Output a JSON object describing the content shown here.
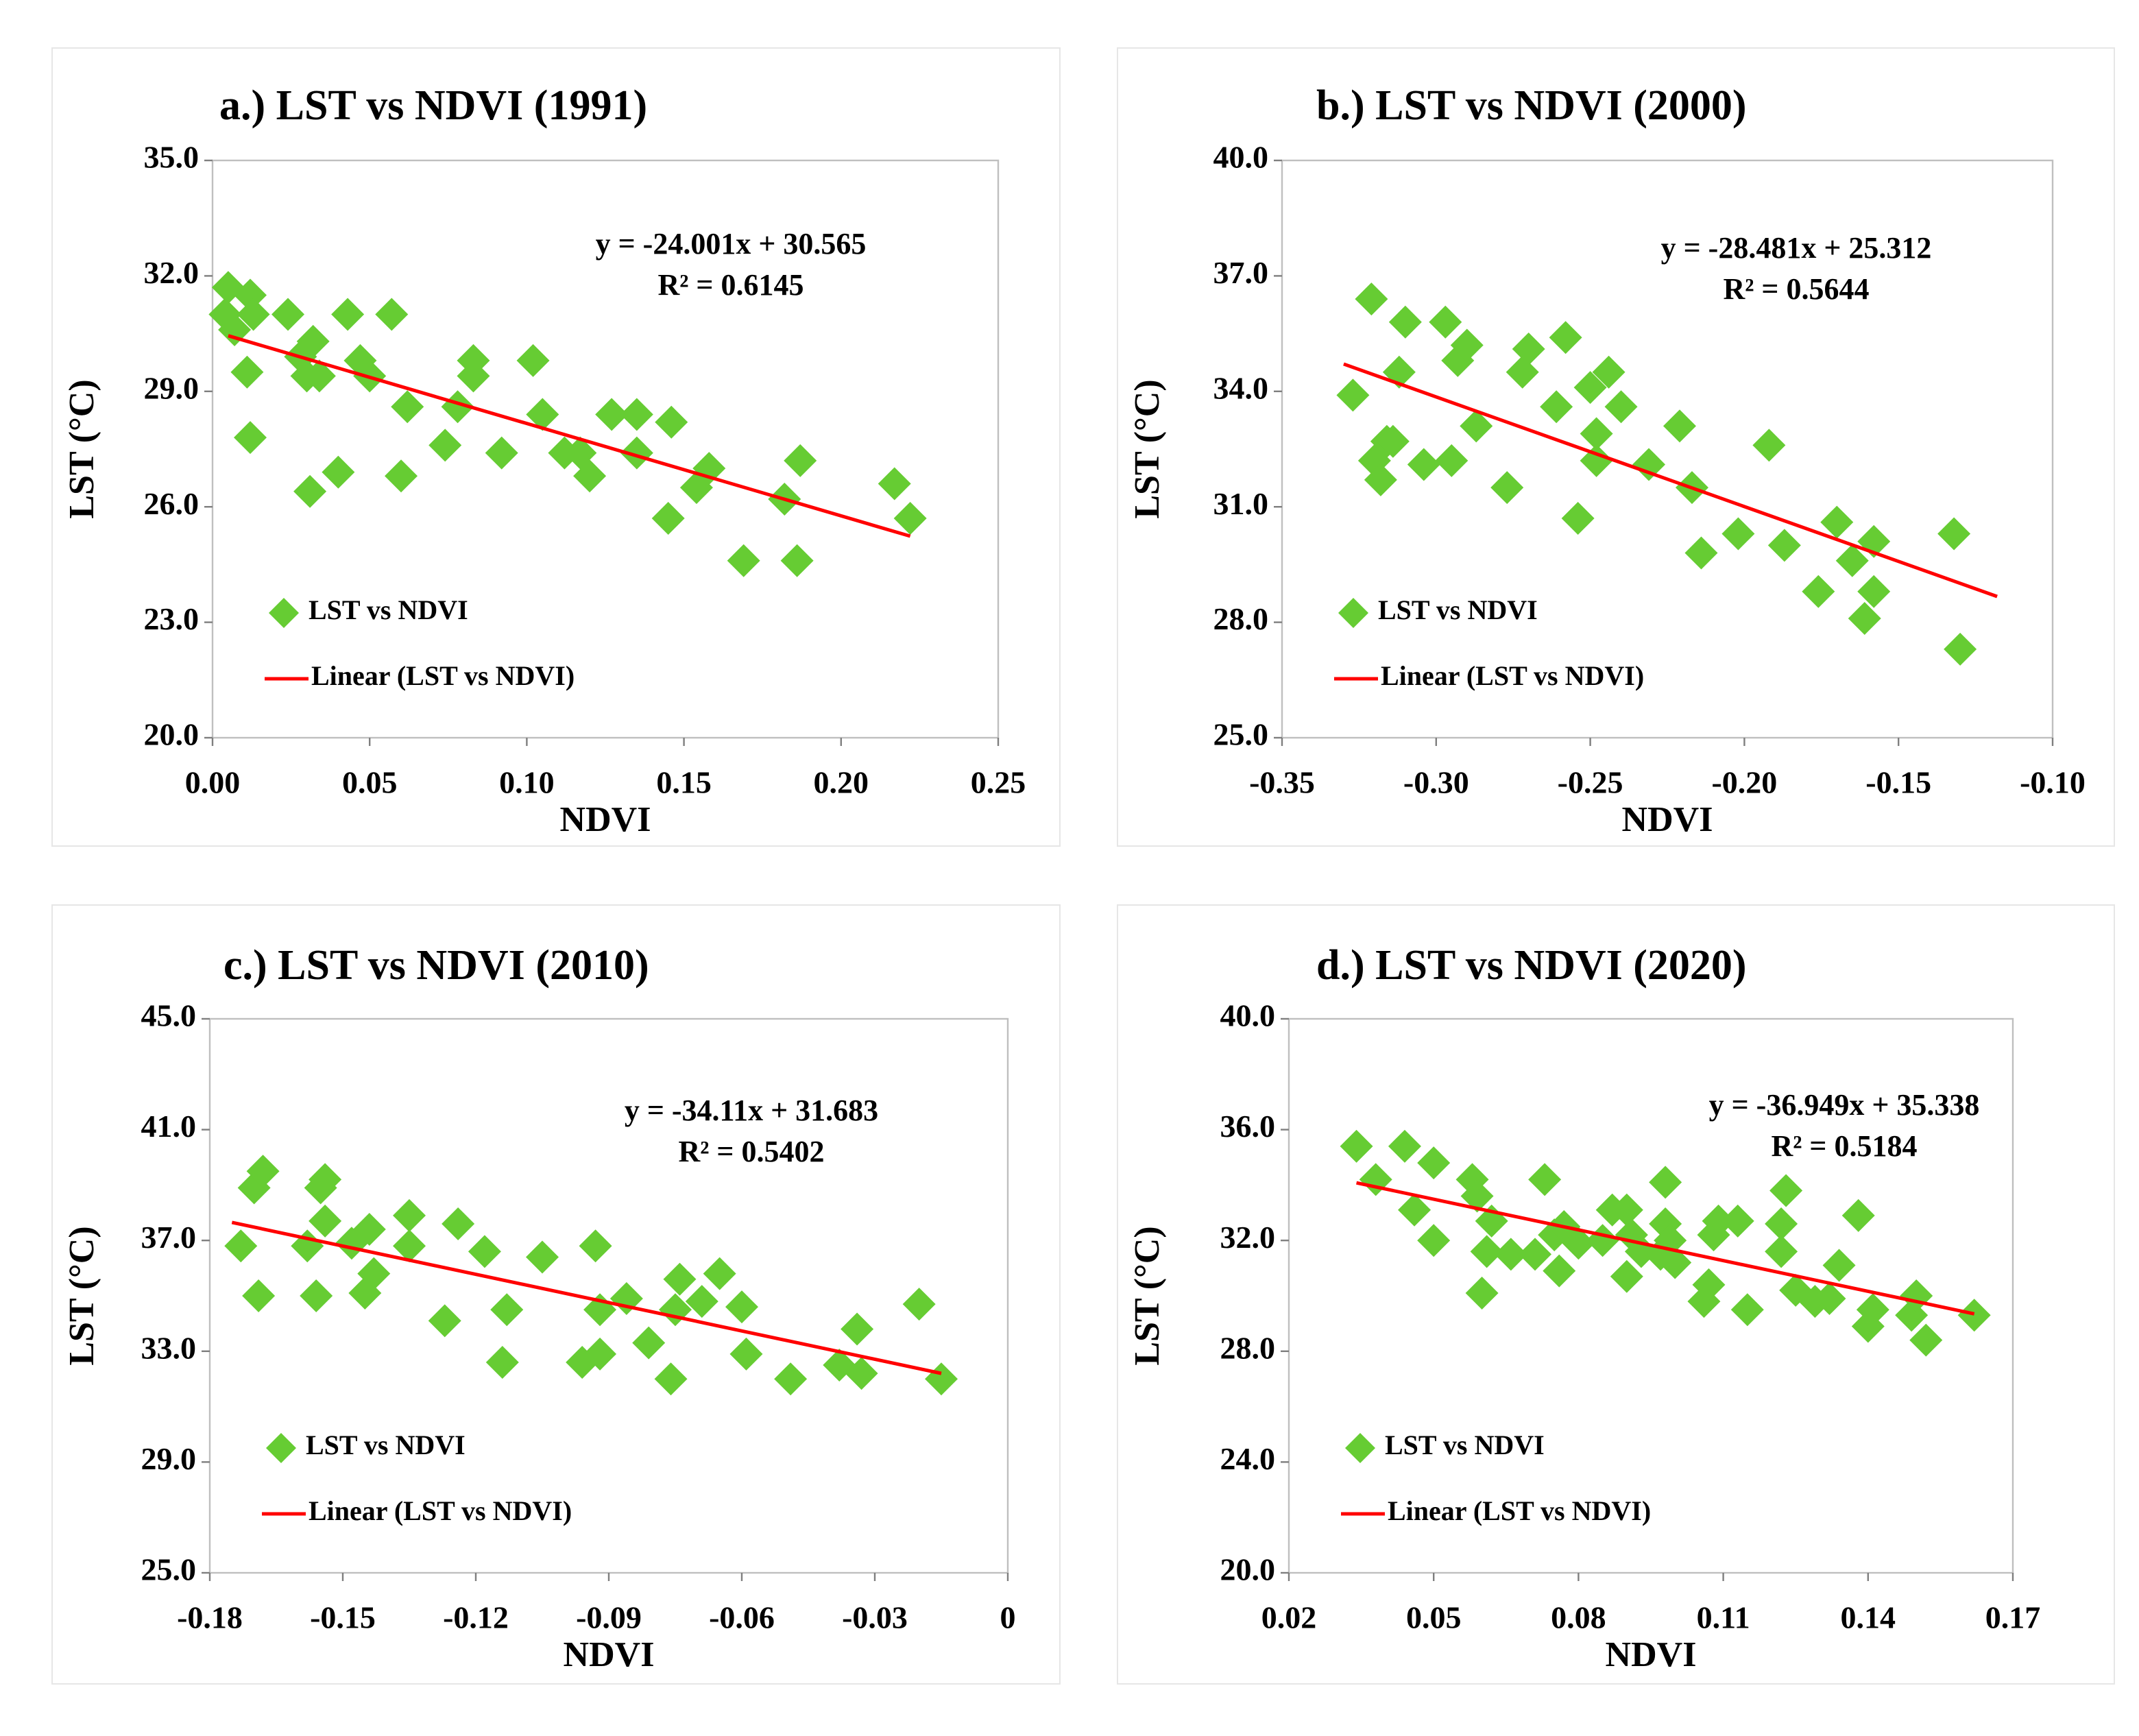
{
  "chart_data": [
    {
      "type": "scatter",
      "title": "a.) LST vs NDVI (1991)",
      "x_label": "NDVI",
      "y_label": "LST (°C)",
      "xlim": [
        0,
        0.25
      ],
      "ylim": [
        20,
        35
      ],
      "xticks": [
        {
          "value": 0,
          "label": "0.00"
        },
        0.05,
        {
          "value": 0.1,
          "label": "0.10"
        },
        0.15,
        {
          "value": 0.2,
          "label": "0.20"
        },
        0.25
      ],
      "yticks": [
        {
          "value": 20,
          "label": "20.0"
        },
        {
          "value": 23,
          "label": "23.0"
        },
        {
          "value": 26,
          "label": "26.0"
        },
        {
          "value": 29,
          "label": "29.0"
        },
        {
          "value": 32,
          "label": "32.0"
        },
        {
          "value": 35,
          "label": "35.0"
        }
      ],
      "series": [
        {
          "name": "LST vs NDVI",
          "color": "#66cc33",
          "x": [
            0.005,
            0.004,
            0.007,
            0.012,
            0.013,
            0.011,
            0.012,
            0.024,
            0.028,
            0.032,
            0.03,
            0.034,
            0.031,
            0.04,
            0.043,
            0.047,
            0.05,
            0.057,
            0.06,
            0.062,
            0.074,
            0.078,
            0.083,
            0.083,
            0.092,
            0.102,
            0.105,
            0.112,
            0.117,
            0.12,
            0.127,
            0.135,
            0.135,
            0.146,
            0.145,
            0.154,
            0.158,
            0.169,
            0.182,
            0.187,
            0.186,
            0.217,
            0.222
          ],
          "values": [
            31.7,
            31.0,
            30.6,
            31.5,
            31.0,
            29.5,
            27.8,
            31.0,
            29.9,
            30.3,
            29.4,
            29.4,
            26.4,
            26.9,
            31.0,
            29.8,
            29.4,
            31.0,
            26.8,
            28.6,
            27.6,
            28.6,
            29.8,
            29.4,
            27.4,
            29.8,
            28.4,
            27.4,
            27.4,
            26.8,
            28.4,
            28.4,
            27.4,
            28.2,
            25.7,
            26.5,
            27.0,
            24.6,
            26.2,
            27.2,
            24.6,
            26.6,
            25.7
          ]
        },
        {
          "name": "Linear (LST vs NDVI)",
          "color": "#ff0000",
          "type": "line",
          "x": [
            0.005,
            0.222
          ],
          "values": [
            30.445,
            25.237
          ]
        }
      ],
      "annotations": [
        "y = -24.001x + 30.565",
        "R² = 0.6145"
      ]
    },
    {
      "type": "scatter",
      "title": "b.) LST vs NDVI (2000)",
      "x_label": "NDVI",
      "y_label": "LST (°C)",
      "xlim": [
        -0.35,
        -0.1
      ],
      "ylim": [
        25,
        40
      ],
      "xticks": [
        -0.35,
        {
          "value": -0.3,
          "label": "-0.30"
        },
        -0.25,
        {
          "value": -0.2,
          "label": "-0.20"
        },
        -0.15,
        {
          "value": -0.1,
          "label": "-0.10"
        }
      ],
      "yticks": [
        {
          "value": 25,
          "label": "25.0"
        },
        {
          "value": 28,
          "label": "28.0"
        },
        {
          "value": 31,
          "label": "31.0"
        },
        {
          "value": 34,
          "label": "34.0"
        },
        {
          "value": 37,
          "label": "37.0"
        },
        {
          "value": 40,
          "label": "40.0"
        }
      ],
      "series": [
        {
          "name": "LST vs NDVI",
          "color": "#66cc33",
          "x": [
            -0.327,
            -0.321,
            -0.32,
            -0.318,
            -0.316,
            -0.314,
            -0.312,
            -0.31,
            -0.304,
            -0.297,
            -0.295,
            -0.293,
            -0.29,
            -0.287,
            -0.277,
            -0.272,
            -0.27,
            -0.261,
            -0.258,
            -0.254,
            -0.25,
            -0.248,
            -0.248,
            -0.244,
            -0.24,
            -0.231,
            -0.221,
            -0.217,
            -0.214,
            -0.202,
            -0.192,
            -0.187,
            -0.176,
            -0.17,
            -0.165,
            -0.161,
            -0.158,
            -0.158,
            -0.132,
            -0.13
          ],
          "values": [
            33.9,
            36.4,
            32.2,
            31.7,
            32.7,
            32.7,
            34.5,
            35.8,
            32.1,
            35.8,
            32.2,
            34.8,
            35.2,
            33.1,
            31.5,
            34.5,
            35.1,
            33.6,
            35.4,
            30.7,
            34.1,
            32.9,
            32.2,
            34.5,
            33.6,
            32.1,
            33.1,
            31.5,
            29.8,
            30.3,
            32.6,
            30.0,
            28.8,
            30.6,
            29.6,
            28.1,
            30.1,
            28.8,
            30.3,
            27.3
          ]
        },
        {
          "name": "Linear (LST vs NDVI)",
          "color": "#ff0000",
          "type": "line",
          "x": [
            -0.33,
            -0.118
          ],
          "values": [
            34.71,
            28.67
          ]
        }
      ],
      "annotations": [
        "y = -28.481x + 25.312",
        "R² = 0.5644"
      ]
    },
    {
      "type": "scatter",
      "title": "c.) LST vs NDVI (2010)",
      "x_label": "NDVI",
      "y_label": "LST (°C)",
      "xlim": [
        -0.18,
        0
      ],
      "ylim": [
        25,
        45
      ],
      "xticks": [
        -0.18,
        -0.15,
        -0.12,
        -0.09,
        -0.06,
        -0.03,
        0
      ],
      "yticks": [
        {
          "value": 25,
          "label": "25.0"
        },
        {
          "value": 29,
          "label": "29.0"
        },
        {
          "value": 33,
          "label": "33.0"
        },
        {
          "value": 37,
          "label": "37.0"
        },
        {
          "value": 41,
          "label": "41.0"
        },
        {
          "value": 45,
          "label": "45.0"
        }
      ],
      "series": [
        {
          "name": "LST vs NDVI",
          "color": "#66cc33",
          "x": [
            -0.173,
            -0.17,
            -0.168,
            -0.169,
            -0.158,
            -0.156,
            -0.155,
            -0.154,
            -0.154,
            -0.148,
            -0.144,
            -0.143,
            -0.145,
            -0.135,
            -0.135,
            -0.127,
            -0.124,
            -0.118,
            -0.113,
            -0.114,
            -0.105,
            -0.096,
            -0.093,
            -0.092,
            -0.092,
            -0.086,
            -0.081,
            -0.076,
            -0.074,
            -0.075,
            -0.069,
            -0.065,
            -0.06,
            -0.059,
            -0.049,
            -0.038,
            -0.034,
            -0.033,
            -0.02,
            -0.015
          ],
          "values": [
            36.8,
            38.9,
            39.5,
            35.0,
            36.8,
            35.0,
            38.9,
            39.2,
            37.7,
            36.9,
            37.4,
            35.8,
            35.1,
            37.9,
            36.8,
            34.1,
            37.6,
            36.6,
            34.5,
            32.6,
            36.4,
            32.6,
            36.8,
            34.5,
            32.9,
            34.9,
            33.3,
            32.0,
            35.6,
            34.5,
            34.8,
            35.8,
            34.6,
            32.9,
            32.0,
            32.5,
            33.8,
            32.2,
            34.7,
            32.0
          ]
        },
        {
          "name": "Linear (LST vs NDVI)",
          "color": "#ff0000",
          "type": "line",
          "x": [
            -0.175,
            -0.015
          ],
          "values": [
            37.65,
            32.2
          ]
        }
      ],
      "annotations": [
        "y = -34.11x + 31.683",
        "R² = 0.5402"
      ]
    },
    {
      "type": "scatter",
      "title": "d.) LST vs NDVI (2020)",
      "x_label": "NDVI",
      "y_label": "LST (°C)",
      "xlim": [
        0.02,
        0.17
      ],
      "ylim": [
        20,
        40
      ],
      "xticks": [
        0.02,
        0.05,
        0.08,
        0.11,
        0.14,
        0.17
      ],
      "yticks": [
        {
          "value": 20,
          "label": "20.0"
        },
        {
          "value": 24,
          "label": "24.0"
        },
        {
          "value": 28,
          "label": "28.0"
        },
        {
          "value": 32,
          "label": "32.0"
        },
        {
          "value": 36,
          "label": "36.0"
        },
        {
          "value": 40,
          "label": "40.0"
        }
      ],
      "series": [
        {
          "name": "LST vs NDVI",
          "color": "#66cc33",
          "x": [
            0.034,
            0.038,
            0.044,
            0.046,
            0.05,
            0.05,
            0.058,
            0.059,
            0.062,
            0.061,
            0.06,
            0.066,
            0.071,
            0.073,
            0.075,
            0.076,
            0.077,
            0.08,
            0.085,
            0.087,
            0.09,
            0.09,
            0.091,
            0.093,
            0.097,
            0.098,
            0.098,
            0.099,
            0.1,
            0.106,
            0.107,
            0.108,
            0.109,
            0.113,
            0.115,
            0.122,
            0.122,
            0.123,
            0.125,
            0.129,
            0.132,
            0.134,
            0.138,
            0.14,
            0.141,
            0.149,
            0.15,
            0.152,
            0.162
          ],
          "values": [
            35.4,
            34.2,
            35.4,
            33.1,
            34.8,
            32.0,
            34.2,
            33.6,
            32.7,
            31.6,
            30.1,
            31.5,
            31.5,
            34.2,
            32.2,
            30.9,
            32.5,
            31.9,
            32.0,
            33.1,
            33.1,
            30.7,
            32.2,
            31.6,
            31.5,
            32.6,
            34.1,
            32.0,
            31.2,
            29.8,
            30.4,
            32.2,
            32.7,
            32.7,
            29.5,
            32.6,
            31.6,
            33.8,
            30.2,
            29.8,
            29.9,
            31.1,
            32.9,
            28.9,
            29.5,
            29.3,
            30.0,
            28.4,
            29.3
          ]
        },
        {
          "name": "Linear (LST vs NDVI)",
          "color": "#ff0000",
          "type": "line",
          "x": [
            0.034,
            0.162
          ],
          "values": [
            34.08,
            29.35
          ]
        }
      ],
      "annotations": [
        "y = -36.949x + 35.338",
        "R² = 0.5184"
      ]
    }
  ]
}
